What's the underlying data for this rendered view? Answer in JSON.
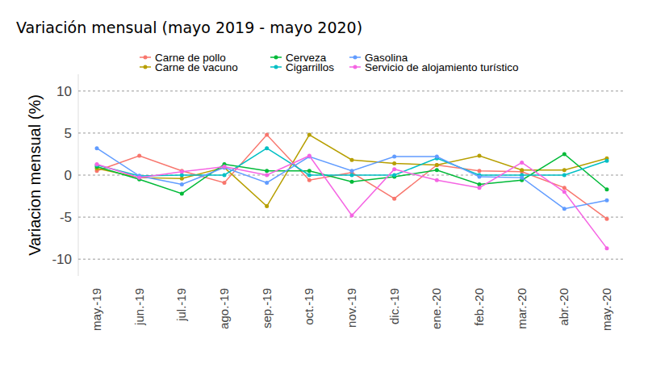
{
  "chart_data": {
    "type": "line",
    "title": "Variación mensual (mayo 2019 - mayo 2020)",
    "y_label": "Variacion mensual (%)",
    "categories": [
      "may.-19",
      "jun.-19",
      "jul.-19",
      "ago.-19",
      "sep.-19",
      "oct.-19",
      "nov.-19",
      "dic.-19",
      "ene.-20",
      "feb.-20",
      "mar.-20",
      "abr.-20",
      "may.-20"
    ],
    "ylim": [
      -12,
      12
    ],
    "yticks": [
      -10,
      -5,
      0,
      5,
      10
    ],
    "grid": true,
    "legend": "top",
    "marker": "circle",
    "series": [
      {
        "name": "Carne de pollo",
        "color": "#F8766D",
        "values": [
          0.5,
          2.3,
          0.5,
          -0.9,
          4.8,
          -0.6,
          0.3,
          -2.8,
          1.2,
          0.5,
          0.4,
          -1.5,
          -5.2
        ]
      },
      {
        "name": "Carne de vacuno",
        "color": "#B79F00",
        "values": [
          0.8,
          -0.3,
          -0.4,
          0.9,
          -3.7,
          4.8,
          1.8,
          1.4,
          1.2,
          2.3,
          0.6,
          0.6,
          2.0
        ]
      },
      {
        "name": "Cerveza",
        "color": "#00BA38",
        "values": [
          1.0,
          -0.5,
          -2.2,
          1.3,
          0.5,
          0.5,
          -0.8,
          -0.2,
          0.6,
          -1.1,
          -0.6,
          2.5,
          -1.7
        ]
      },
      {
        "name": "Cigarrillos",
        "color": "#00BFC4",
        "values": [
          1.2,
          -0.1,
          0.0,
          0.0,
          3.2,
          0.0,
          0.0,
          0.0,
          2.0,
          0.0,
          0.0,
          0.0,
          1.7
        ]
      },
      {
        "name": "Gasolina",
        "color": "#619CFF",
        "values": [
          3.2,
          -0.1,
          -1.1,
          0.9,
          -0.9,
          2.2,
          0.5,
          2.2,
          2.2,
          -0.2,
          -0.3,
          -4.0,
          -3.0
        ]
      },
      {
        "name": "Servicio de alojamiento turístico",
        "color": "#F564E3",
        "values": [
          1.3,
          -0.3,
          0.4,
          1.0,
          0.0,
          2.3,
          -4.8,
          0.7,
          -0.6,
          -1.5,
          1.5,
          -2.0,
          -8.7
        ]
      }
    ]
  }
}
